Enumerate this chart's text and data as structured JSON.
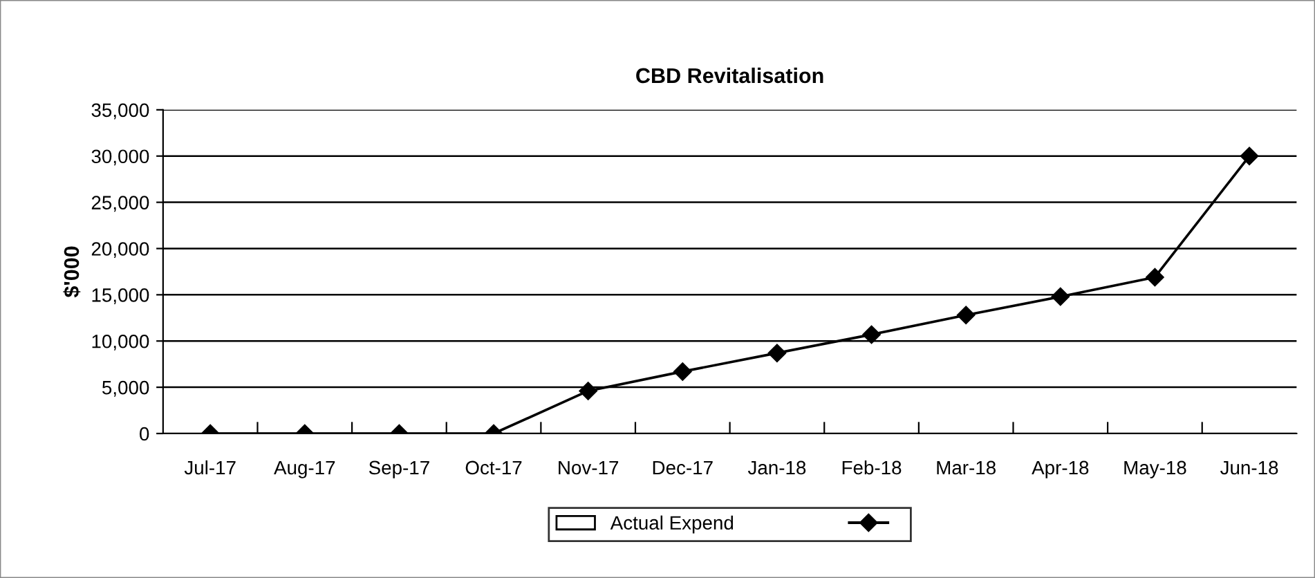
{
  "chart_data": {
    "type": "line",
    "title": "CBD Revitalisation",
    "ylabel": "$'000",
    "categories": [
      "Jul-17",
      "Aug-17",
      "Sep-17",
      "Oct-17",
      "Nov-17",
      "Dec-17",
      "Jan-18",
      "Feb-18",
      "Mar-18",
      "Apr-18",
      "May-18",
      "Jun-18"
    ],
    "series": [
      {
        "name": "Actual Expend",
        "type": "bar",
        "color": "#ffffff",
        "values": [
          null,
          null,
          null,
          null,
          null,
          null,
          null,
          null,
          null,
          null,
          null,
          null
        ]
      },
      {
        "color": "#000000",
        "values": [
          0,
          0,
          0,
          0,
          4600,
          6700,
          8700,
          10700,
          12800,
          14800,
          16900,
          30000
        ]
      }
    ],
    "ylim": [
      0,
      35000
    ],
    "yticks": [
      {
        "value": 0,
        "label": "0"
      },
      {
        "value": 5000,
        "label": "5,000"
      },
      {
        "value": 10000,
        "label": "10,000"
      },
      {
        "value": 15000,
        "label": "15,000"
      },
      {
        "value": 20000,
        "label": "20,000"
      },
      {
        "value": 25000,
        "label": "25,000"
      },
      {
        "value": 30000,
        "label": "30,000"
      },
      {
        "value": 35000,
        "label": "35,000"
      }
    ],
    "grid": "y",
    "legend": "bottom",
    "marker": "diamond",
    "line_style": "solid"
  }
}
